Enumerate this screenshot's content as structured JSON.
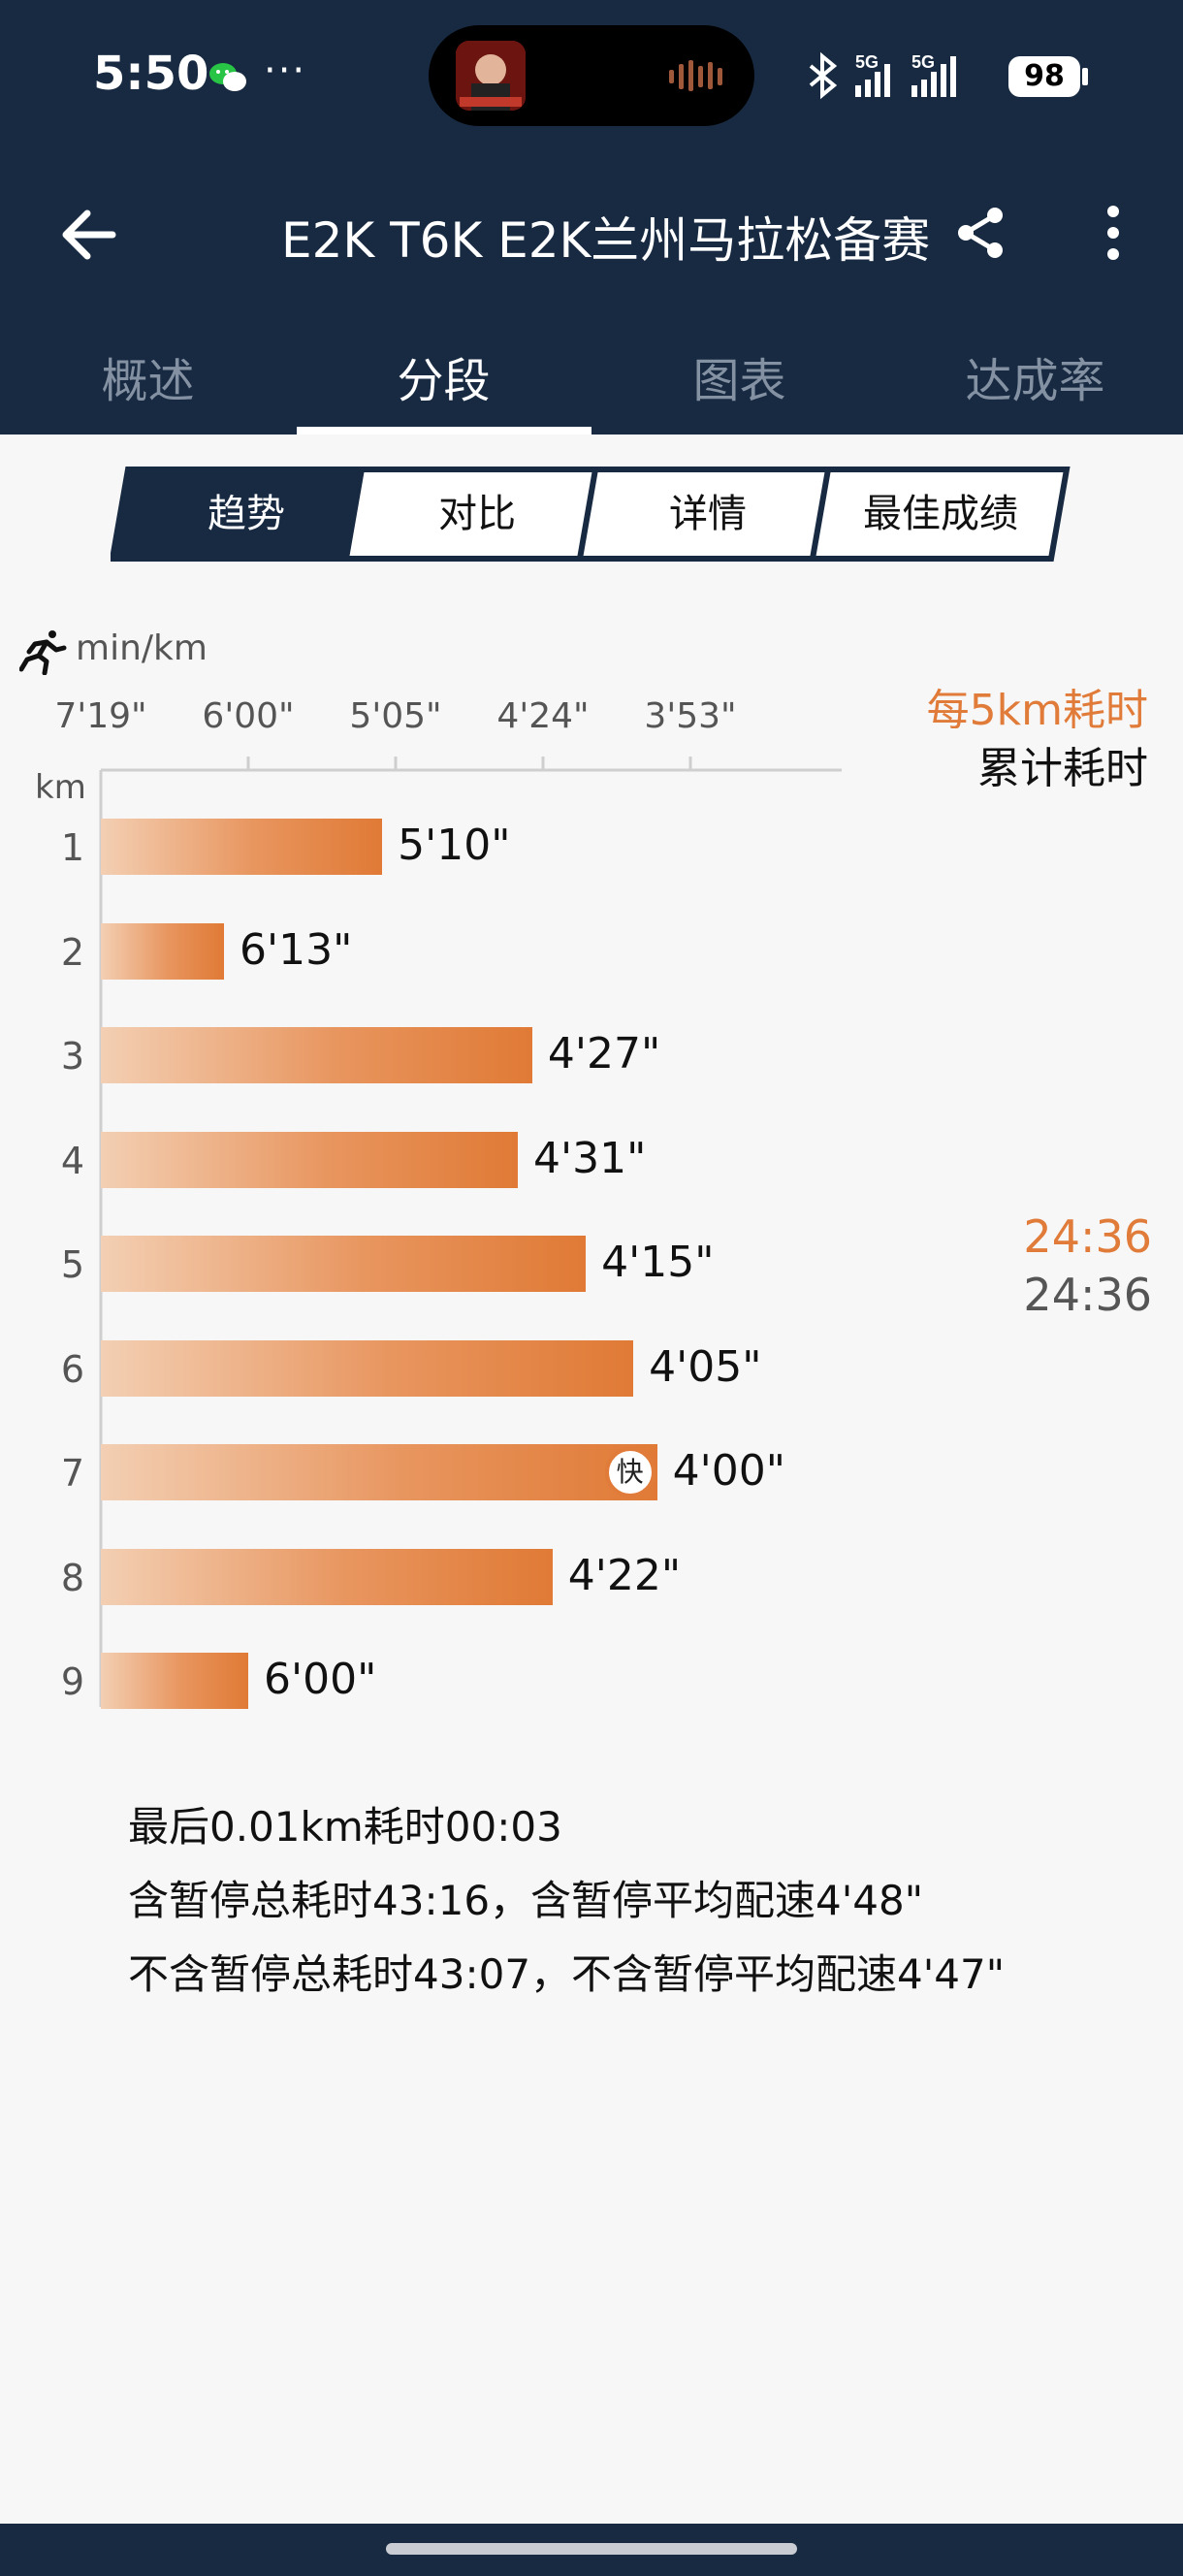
{
  "status": {
    "time": "5:50",
    "dots": "···",
    "battery": "98",
    "net1": "5G",
    "net2": "5G"
  },
  "header": {
    "title": "E2K T6K E2K兰州马拉松备赛"
  },
  "tabs": [
    "概述",
    "分段",
    "图表",
    "达成率"
  ],
  "active_tab": 1,
  "segments": [
    "趋势",
    "对比",
    "详情",
    "最佳成绩"
  ],
  "active_segment": 0,
  "chart": {
    "unit": "min/km",
    "km_label": "km",
    "ticks": [
      "7'19\"",
      "6'00\"",
      "5'05\"",
      "4'24\"",
      "3'53\""
    ],
    "legend_pace": "每5km耗时",
    "legend_cumulative": "累计耗时",
    "fast_badge": "快",
    "cum_pace": "24:36",
    "cum_total": "24:36"
  },
  "chart_data": {
    "type": "bar",
    "orientation": "horizontal",
    "xlabel": "min/km",
    "ylabel": "km",
    "categories": [
      "1",
      "2",
      "3",
      "4",
      "5",
      "6",
      "7",
      "8",
      "9"
    ],
    "labels": [
      "5'10\"",
      "6'13\"",
      "4'27\"",
      "4'31\"",
      "4'15\"",
      "4'05\"",
      "4'00\"",
      "4'22\"",
      "6'00\""
    ],
    "values_seconds": [
      310,
      373,
      267,
      271,
      255,
      245,
      240,
      262,
      360
    ],
    "fastest_index": 6,
    "x_ticks": [
      "7'19\"",
      "6'00\"",
      "5'05\"",
      "4'24\"",
      "3'53\""
    ],
    "x_tick_seconds": [
      439,
      360,
      305,
      264,
      233
    ]
  },
  "notes": [
    "最后0.01km耗时00:03",
    "含暂停总耗时43:16，含暂停平均配速4'48\"",
    "不含暂停总耗时43:07，不含暂停平均配速4'47\""
  ],
  "colors": {
    "header": "#172a42",
    "accent": "#e07b39",
    "bar_start": "#f3cfb3",
    "bar_end": "#e07a36"
  }
}
